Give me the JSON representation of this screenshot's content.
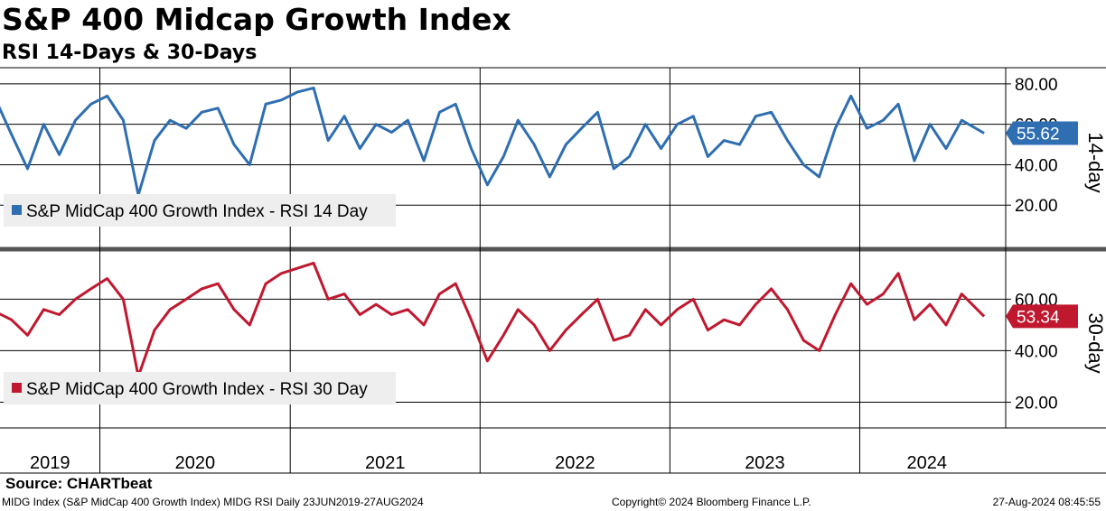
{
  "title": "S&P 400 Midcap Growth Index",
  "subtitle": "RSI 14-Days & 30-Days",
  "source": "Source: CHARTbeat",
  "footer": {
    "left": "MIDG Index (S&P MidCap 400 Growth Index) MIDG RSI  Daily 23JUN2019-27AUG2024",
    "middle": "Copyright© 2024 Bloomberg Finance L.P.",
    "right": "27-Aug-2024 08:45:55"
  },
  "chart_data": [
    {
      "type": "line",
      "panel": "top",
      "series_name": "S&P MidCap 400 Growth Index - RSI 14 Day",
      "side_label": "14-day",
      "color": "#2e6eb1",
      "last_value": "55.62",
      "yticks": [
        "80.00",
        "60.00",
        "40.00",
        "20.00"
      ],
      "ylim": [
        0,
        88
      ],
      "legend_position": "bottom-left",
      "x": [
        "2019-06",
        "2019-07",
        "2019-08",
        "2019-09",
        "2019-10",
        "2019-11",
        "2019-12",
        "2020-01",
        "2020-02",
        "2020-03",
        "2020-04",
        "2020-05",
        "2020-06",
        "2020-07",
        "2020-08",
        "2020-09",
        "2020-10",
        "2020-11",
        "2020-12",
        "2021-01",
        "2021-02",
        "2021-03",
        "2021-04",
        "2021-05",
        "2021-06",
        "2021-07",
        "2021-08",
        "2021-09",
        "2021-10",
        "2021-11",
        "2021-12",
        "2022-01",
        "2022-02",
        "2022-03",
        "2022-04",
        "2022-05",
        "2022-06",
        "2022-07",
        "2022-08",
        "2022-09",
        "2022-10",
        "2022-11",
        "2022-12",
        "2023-01",
        "2023-02",
        "2023-03",
        "2023-04",
        "2023-05",
        "2023-06",
        "2023-07",
        "2023-08",
        "2023-09",
        "2023-10",
        "2023-11",
        "2023-12",
        "2024-01",
        "2024-02",
        "2024-03",
        "2024-04",
        "2024-05",
        "2024-06",
        "2024-07",
        "2024-08"
      ],
      "values": [
        72,
        55,
        38,
        60,
        45,
        62,
        70,
        74,
        62,
        25,
        52,
        62,
        58,
        66,
        68,
        50,
        40,
        70,
        72,
        76,
        78,
        52,
        64,
        48,
        60,
        56,
        62,
        42,
        66,
        70,
        48,
        30,
        44,
        62,
        50,
        34,
        50,
        58,
        66,
        38,
        44,
        60,
        48,
        60,
        64,
        44,
        52,
        50,
        64,
        66,
        52,
        40,
        34,
        58,
        74,
        58,
        62,
        70,
        42,
        60,
        48,
        62,
        55.62
      ]
    },
    {
      "type": "line",
      "panel": "bottom",
      "series_name": "S&P MidCap 400 Growth Index - RSI 30 Day",
      "side_label": "30-day",
      "color": "#c0182f",
      "last_value": "53.34",
      "yticks": [
        "60.00",
        "40.00",
        "20.00"
      ],
      "ylim": [
        10,
        78
      ],
      "legend_position": "bottom-left",
      "x": [
        "2019-06",
        "2019-07",
        "2019-08",
        "2019-09",
        "2019-10",
        "2019-11",
        "2019-12",
        "2020-01",
        "2020-02",
        "2020-03",
        "2020-04",
        "2020-05",
        "2020-06",
        "2020-07",
        "2020-08",
        "2020-09",
        "2020-10",
        "2020-11",
        "2020-12",
        "2021-01",
        "2021-02",
        "2021-03",
        "2021-04",
        "2021-05",
        "2021-06",
        "2021-07",
        "2021-08",
        "2021-09",
        "2021-10",
        "2021-11",
        "2021-12",
        "2022-01",
        "2022-02",
        "2022-03",
        "2022-04",
        "2022-05",
        "2022-06",
        "2022-07",
        "2022-08",
        "2022-09",
        "2022-10",
        "2022-11",
        "2022-12",
        "2023-01",
        "2023-02",
        "2023-03",
        "2023-04",
        "2023-05",
        "2023-06",
        "2023-07",
        "2023-08",
        "2023-09",
        "2023-10",
        "2023-11",
        "2023-12",
        "2024-01",
        "2024-02",
        "2024-03",
        "2024-04",
        "2024-05",
        "2024-06",
        "2024-07",
        "2024-08"
      ],
      "values": [
        55,
        52,
        46,
        56,
        54,
        60,
        64,
        68,
        60,
        30,
        48,
        56,
        60,
        64,
        66,
        56,
        50,
        66,
        70,
        72,
        74,
        60,
        62,
        54,
        58,
        54,
        56,
        50,
        62,
        66,
        52,
        36,
        46,
        56,
        50,
        40,
        48,
        54,
        60,
        44,
        46,
        56,
        50,
        56,
        60,
        48,
        52,
        50,
        58,
        64,
        56,
        44,
        40,
        54,
        66,
        58,
        62,
        70,
        52,
        58,
        50,
        62,
        53.34
      ]
    }
  ],
  "x_axis": {
    "year_labels": [
      "2019",
      "2020",
      "2021",
      "2022",
      "2023",
      "2024"
    ]
  }
}
